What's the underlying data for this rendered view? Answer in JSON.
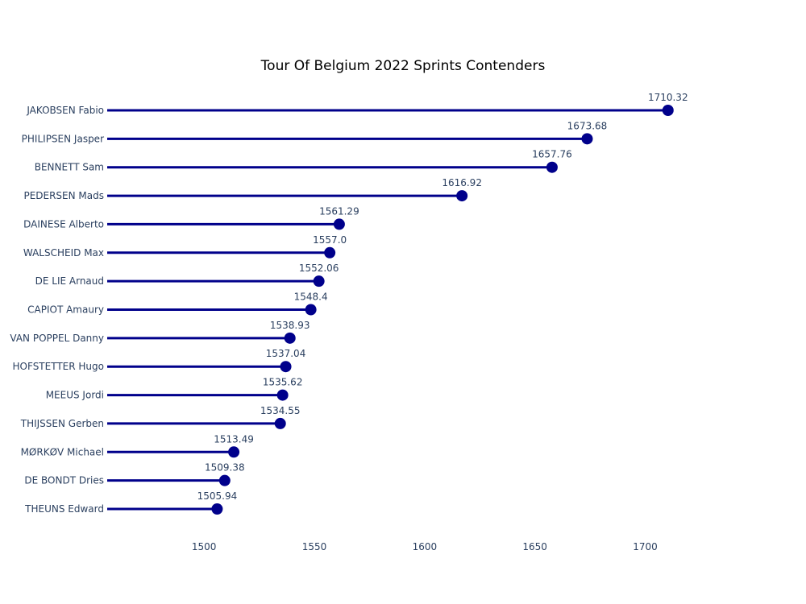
{
  "chart_data": {
    "type": "lollipop",
    "title": "Tour Of Belgium 2022 Sprints Contenders",
    "xlabel": "",
    "ylabel": "",
    "xlim": [
      1455,
      1740
    ],
    "x_ticks": [
      1500,
      1550,
      1600,
      1650,
      1700
    ],
    "x_tick_labels": [
      "1500",
      "1550",
      "1600",
      "1650",
      "1700"
    ],
    "grid": false,
    "color": "#00008b",
    "categories": [
      "JAKOBSEN Fabio",
      "PHILIPSEN Jasper",
      "BENNETT Sam",
      "PEDERSEN Mads",
      "DAINESE Alberto",
      "WALSCHEID Max",
      "DE LIE Arnaud",
      "CAPIOT Amaury",
      "VAN POPPEL Danny",
      "HOFSTETTER Hugo",
      "MEEUS Jordi",
      "THIJSSEN Gerben",
      "MØRKØV Michael",
      "DE BONDT Dries",
      "THEUNS Edward"
    ],
    "values": [
      1710.32,
      1673.68,
      1657.76,
      1616.92,
      1561.29,
      1557.0,
      1552.06,
      1548.4,
      1538.93,
      1537.04,
      1535.62,
      1534.55,
      1513.49,
      1509.38,
      1505.94
    ],
    "value_labels": [
      "1710.32",
      "1673.68",
      "1657.76",
      "1616.92",
      "1561.29",
      "1557.0",
      "1552.06",
      "1548.4",
      "1538.93",
      "1537.04",
      "1535.62",
      "1534.55",
      "1513.49",
      "1509.38",
      "1505.94"
    ]
  }
}
